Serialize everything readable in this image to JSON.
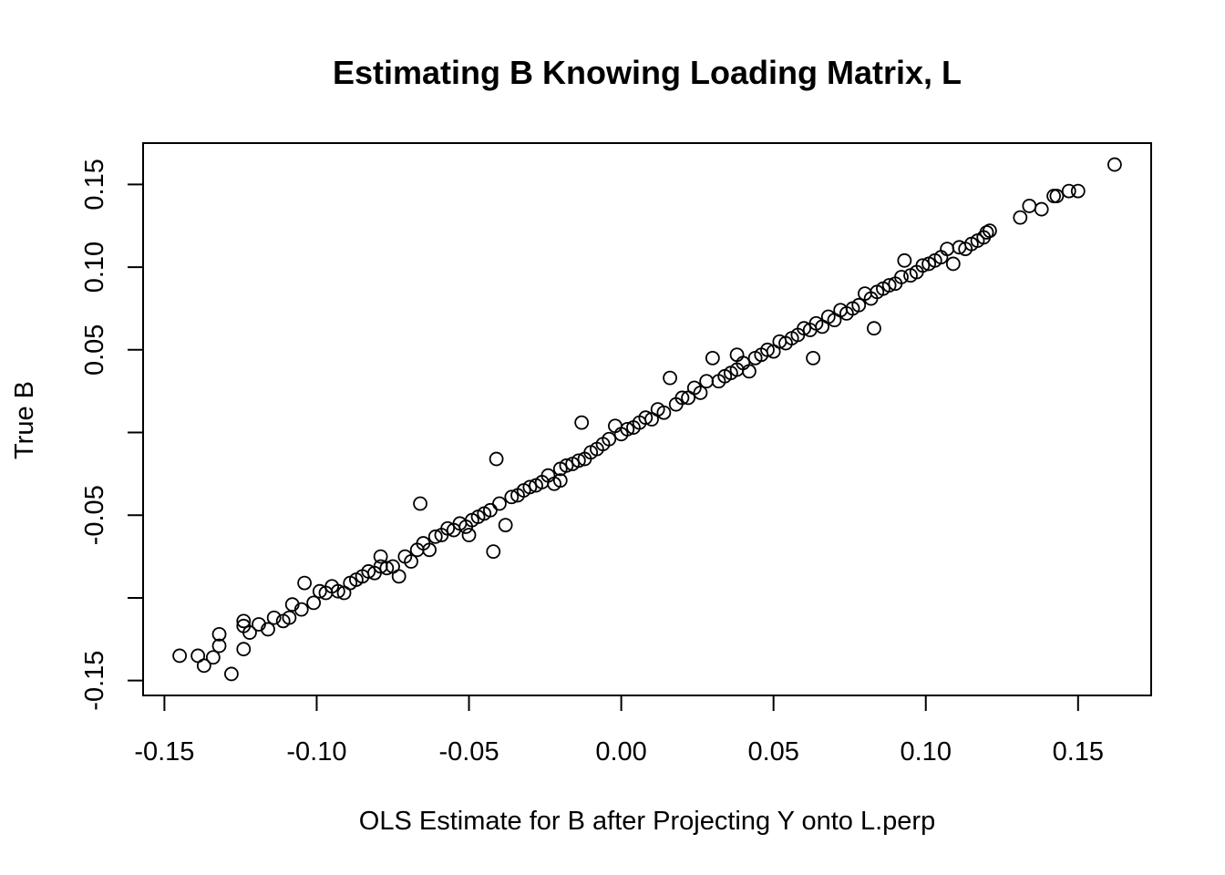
{
  "chart_data": {
    "type": "scatter",
    "title": "Estimating B Knowing Loading Matrix, L",
    "xlabel": "OLS Estimate for B after Projecting Y onto L.perp",
    "ylabel": "True B",
    "xlim": [
      -0.157,
      0.174
    ],
    "ylim": [
      -0.159,
      0.175
    ],
    "x_ticks": [
      -0.15,
      -0.1,
      -0.05,
      0.0,
      0.05,
      0.1,
      0.15
    ],
    "x_tick_labels": [
      "-0.15",
      "-0.10",
      "-0.05",
      "0.00",
      "0.05",
      "0.10",
      "0.15"
    ],
    "y_ticks": [
      -0.15,
      -0.1,
      -0.05,
      0.0,
      0.05,
      0.1,
      0.15
    ],
    "y_tick_labels": [
      "-0.15",
      "",
      "-0.05",
      "",
      "0.05",
      "0.10",
      "0.15"
    ],
    "grid": false,
    "legend": "none",
    "marker": "open-circle",
    "colors": {
      "marker": "#000000",
      "background": "#ffffff"
    },
    "series": [
      {
        "values": [
          [
            -0.145,
            -0.135
          ],
          [
            -0.139,
            -0.135
          ],
          [
            -0.137,
            -0.141
          ],
          [
            -0.134,
            -0.136
          ],
          [
            -0.132,
            -0.129
          ],
          [
            -0.132,
            -0.122
          ],
          [
            -0.128,
            -0.146
          ],
          [
            -0.124,
            -0.131
          ],
          [
            -0.124,
            -0.117
          ],
          [
            -0.124,
            -0.114
          ],
          [
            -0.122,
            -0.121
          ],
          [
            -0.119,
            -0.116
          ],
          [
            -0.116,
            -0.119
          ],
          [
            -0.114,
            -0.112
          ],
          [
            -0.111,
            -0.114
          ],
          [
            -0.109,
            -0.112
          ],
          [
            -0.108,
            -0.104
          ],
          [
            -0.105,
            -0.107
          ],
          [
            -0.104,
            -0.091
          ],
          [
            -0.101,
            -0.103
          ],
          [
            -0.099,
            -0.096
          ],
          [
            -0.097,
            -0.097
          ],
          [
            -0.095,
            -0.093
          ],
          [
            -0.093,
            -0.096
          ],
          [
            -0.091,
            -0.097
          ],
          [
            -0.089,
            -0.091
          ],
          [
            -0.087,
            -0.089
          ],
          [
            -0.085,
            -0.087
          ],
          [
            -0.083,
            -0.084
          ],
          [
            -0.081,
            -0.085
          ],
          [
            -0.079,
            -0.081
          ],
          [
            -0.077,
            -0.082
          ],
          [
            -0.075,
            -0.081
          ],
          [
            -0.073,
            -0.087
          ],
          [
            -0.071,
            -0.075
          ],
          [
            -0.069,
            -0.078
          ],
          [
            -0.067,
            -0.071
          ],
          [
            -0.065,
            -0.067
          ],
          [
            -0.063,
            -0.071
          ],
          [
            -0.061,
            -0.063
          ],
          [
            -0.059,
            -0.062
          ],
          [
            -0.057,
            -0.058
          ],
          [
            -0.055,
            -0.059
          ],
          [
            -0.053,
            -0.055
          ],
          [
            -0.051,
            -0.057
          ],
          [
            -0.049,
            -0.053
          ],
          [
            -0.047,
            -0.051
          ],
          [
            -0.045,
            -0.049
          ],
          [
            -0.043,
            -0.047
          ],
          [
            -0.042,
            -0.072
          ],
          [
            -0.041,
            -0.016
          ],
          [
            -0.04,
            -0.043
          ],
          [
            -0.038,
            -0.056
          ],
          [
            -0.036,
            -0.039
          ],
          [
            -0.034,
            -0.038
          ],
          [
            -0.032,
            -0.035
          ],
          [
            -0.03,
            -0.033
          ],
          [
            -0.028,
            -0.032
          ],
          [
            -0.026,
            -0.03
          ],
          [
            -0.024,
            -0.026
          ],
          [
            -0.022,
            -0.031
          ],
          [
            -0.02,
            -0.022
          ],
          [
            -0.018,
            -0.02
          ],
          [
            -0.016,
            -0.019
          ],
          [
            -0.014,
            -0.017
          ],
          [
            -0.012,
            -0.016
          ],
          [
            -0.01,
            -0.012
          ],
          [
            -0.008,
            -0.01
          ],
          [
            -0.006,
            -0.007
          ],
          [
            -0.004,
            -0.004
          ],
          [
            -0.002,
            0.004
          ],
          [
            0.0,
            -0.001
          ],
          [
            0.002,
            0.002
          ],
          [
            0.004,
            0.003
          ],
          [
            0.006,
            0.006
          ],
          [
            0.008,
            0.009
          ],
          [
            0.01,
            0.008
          ],
          [
            0.012,
            0.014
          ],
          [
            0.014,
            0.012
          ],
          [
            0.016,
            0.033
          ],
          [
            0.018,
            0.017
          ],
          [
            0.02,
            0.021
          ],
          [
            0.022,
            0.021
          ],
          [
            0.024,
            0.027
          ],
          [
            0.026,
            0.024
          ],
          [
            0.028,
            0.031
          ],
          [
            0.03,
            0.045
          ],
          [
            0.032,
            0.031
          ],
          [
            0.034,
            0.034
          ],
          [
            0.036,
            0.036
          ],
          [
            0.038,
            0.038
          ],
          [
            0.04,
            0.042
          ],
          [
            0.042,
            0.037
          ],
          [
            0.044,
            0.045
          ],
          [
            0.046,
            0.047
          ],
          [
            0.048,
            0.05
          ],
          [
            0.05,
            0.049
          ],
          [
            0.052,
            0.055
          ],
          [
            0.054,
            0.054
          ],
          [
            0.056,
            0.057
          ],
          [
            0.058,
            0.059
          ],
          [
            0.06,
            0.063
          ],
          [
            0.062,
            0.062
          ],
          [
            0.064,
            0.066
          ],
          [
            0.066,
            0.064
          ],
          [
            0.068,
            0.07
          ],
          [
            0.07,
            0.068
          ],
          [
            0.072,
            0.074
          ],
          [
            0.074,
            0.072
          ],
          [
            0.076,
            0.075
          ],
          [
            0.078,
            0.077
          ],
          [
            0.08,
            0.084
          ],
          [
            0.082,
            0.081
          ],
          [
            0.084,
            0.085
          ],
          [
            0.086,
            0.087
          ],
          [
            0.088,
            0.089
          ],
          [
            0.09,
            0.09
          ],
          [
            0.092,
            0.094
          ],
          [
            0.093,
            0.104
          ],
          [
            0.095,
            0.095
          ],
          [
            0.097,
            0.097
          ],
          [
            0.099,
            0.101
          ],
          [
            0.101,
            0.102
          ],
          [
            0.103,
            0.104
          ],
          [
            0.105,
            0.106
          ],
          [
            0.107,
            0.111
          ],
          [
            0.109,
            0.102
          ],
          [
            0.111,
            0.112
          ],
          [
            0.113,
            0.111
          ],
          [
            0.115,
            0.114
          ],
          [
            0.117,
            0.116
          ],
          [
            0.119,
            0.118
          ],
          [
            0.12,
            0.121
          ],
          [
            0.121,
            0.122
          ],
          [
            0.131,
            0.13
          ],
          [
            0.134,
            0.137
          ],
          [
            0.138,
            0.135
          ],
          [
            0.142,
            0.143
          ],
          [
            0.143,
            0.143
          ],
          [
            0.147,
            0.146
          ],
          [
            0.15,
            0.146
          ],
          [
            0.162,
            0.162
          ],
          [
            -0.066,
            -0.043
          ],
          [
            0.083,
            0.063
          ],
          [
            -0.013,
            0.006
          ],
          [
            0.063,
            0.045
          ],
          [
            -0.02,
            -0.029
          ],
          [
            0.038,
            0.047
          ],
          [
            -0.05,
            -0.062
          ],
          [
            -0.079,
            -0.075
          ]
        ]
      }
    ]
  }
}
